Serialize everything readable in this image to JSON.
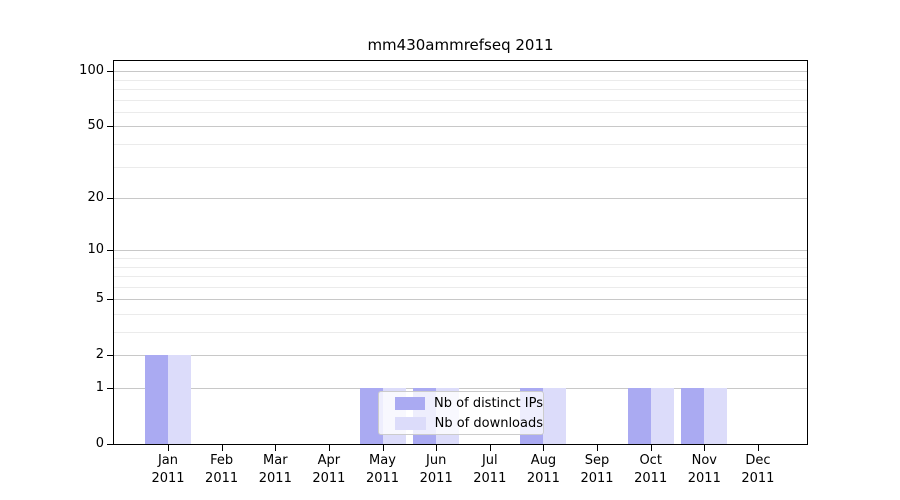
{
  "chart_data": {
    "type": "bar",
    "title": "mm430ammrefseq 2011",
    "categories": [
      "Jan",
      "Feb",
      "Mar",
      "Apr",
      "May",
      "Jun",
      "Jul",
      "Aug",
      "Sep",
      "Oct",
      "Nov",
      "Dec"
    ],
    "category_year": "2011",
    "series": [
      {
        "name": "Nb of distinct IPs",
        "color": "#aaaaf2",
        "values": [
          2,
          0,
          0,
          0,
          1,
          1,
          0,
          1,
          0,
          1,
          1,
          0
        ]
      },
      {
        "name": "Nb of downloads",
        "color": "#dcdcfa",
        "values": [
          2,
          0,
          0,
          0,
          1,
          1,
          0,
          1,
          0,
          1,
          1,
          0
        ]
      }
    ],
    "y_axis": {
      "scale": "log10(1+y)",
      "ticks": [
        0,
        1,
        2,
        5,
        10,
        20,
        50,
        100
      ],
      "minor_gridlines": [
        3,
        4,
        6,
        7,
        8,
        9,
        30,
        40,
        60,
        70,
        80,
        90
      ],
      "ylim": [
        0,
        100
      ]
    },
    "legend": {
      "position": "lower center",
      "entries": [
        "Nb of distinct IPs",
        "Nb of downloads"
      ]
    },
    "grid": true
  },
  "colors": {
    "distinct_ips": "#aaaaf2",
    "downloads": "#dcdcfa",
    "major_grid": "#c8c8c8",
    "minor_grid": "#ebebeb",
    "axis": "#000000",
    "legend_border": "#cccccc",
    "background": "#ffffff"
  }
}
